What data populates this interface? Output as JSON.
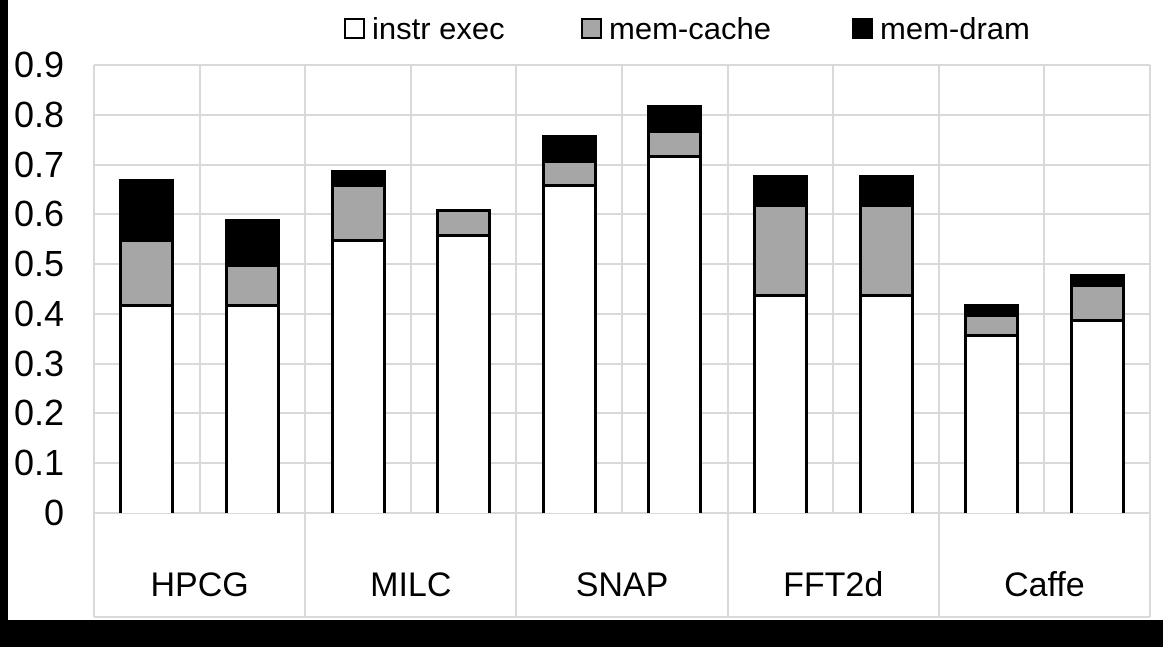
{
  "legend": [
    {
      "label": "instr exec",
      "color": "#ffffff"
    },
    {
      "label": "mem-cache",
      "color": "#a6a6a6"
    },
    {
      "label": "mem-dram",
      "color": "#000000"
    }
  ],
  "colors": {
    "bar_instr": "#ffffff",
    "bar_cache": "#a6a6a6",
    "bar_dram": "#000000",
    "bar_border": "#000000",
    "gridline": "#d9d9d9",
    "frame": "#000000",
    "text": "#000000",
    "background": "#ffffff"
  },
  "chart_data": {
    "type": "bar",
    "stacked": true,
    "title": "",
    "xlabel": "",
    "ylabel": "",
    "legend_position": "top",
    "grid": "both",
    "categories": [
      "HPCG",
      "MILC",
      "SNAP",
      "FFT2d",
      "Caffe"
    ],
    "bars_per_category": 2,
    "series": [
      {
        "name": "instr exec",
        "color": "#ffffff",
        "values": [
          0.42,
          0.42,
          0.55,
          0.56,
          0.66,
          0.72,
          0.44,
          0.44,
          0.36,
          0.39
        ]
      },
      {
        "name": "mem-cache",
        "color": "#a6a6a6",
        "values": [
          0.13,
          0.08,
          0.11,
          0.05,
          0.05,
          0.05,
          0.18,
          0.18,
          0.04,
          0.07
        ]
      },
      {
        "name": "mem-dram",
        "color": "#000000",
        "values": [
          0.12,
          0.09,
          0.03,
          0.0,
          0.05,
          0.05,
          0.06,
          0.06,
          0.02,
          0.02
        ]
      }
    ],
    "bar_totals": [
      0.67,
      0.59,
      0.69,
      0.61,
      0.76,
      0.82,
      0.68,
      0.68,
      0.42,
      0.48
    ],
    "ylim": [
      0,
      0.9
    ],
    "yticks": [
      0.9,
      0.8,
      0.7,
      0.6,
      0.5,
      0.4,
      0.3,
      0.2,
      0.1,
      0
    ]
  }
}
